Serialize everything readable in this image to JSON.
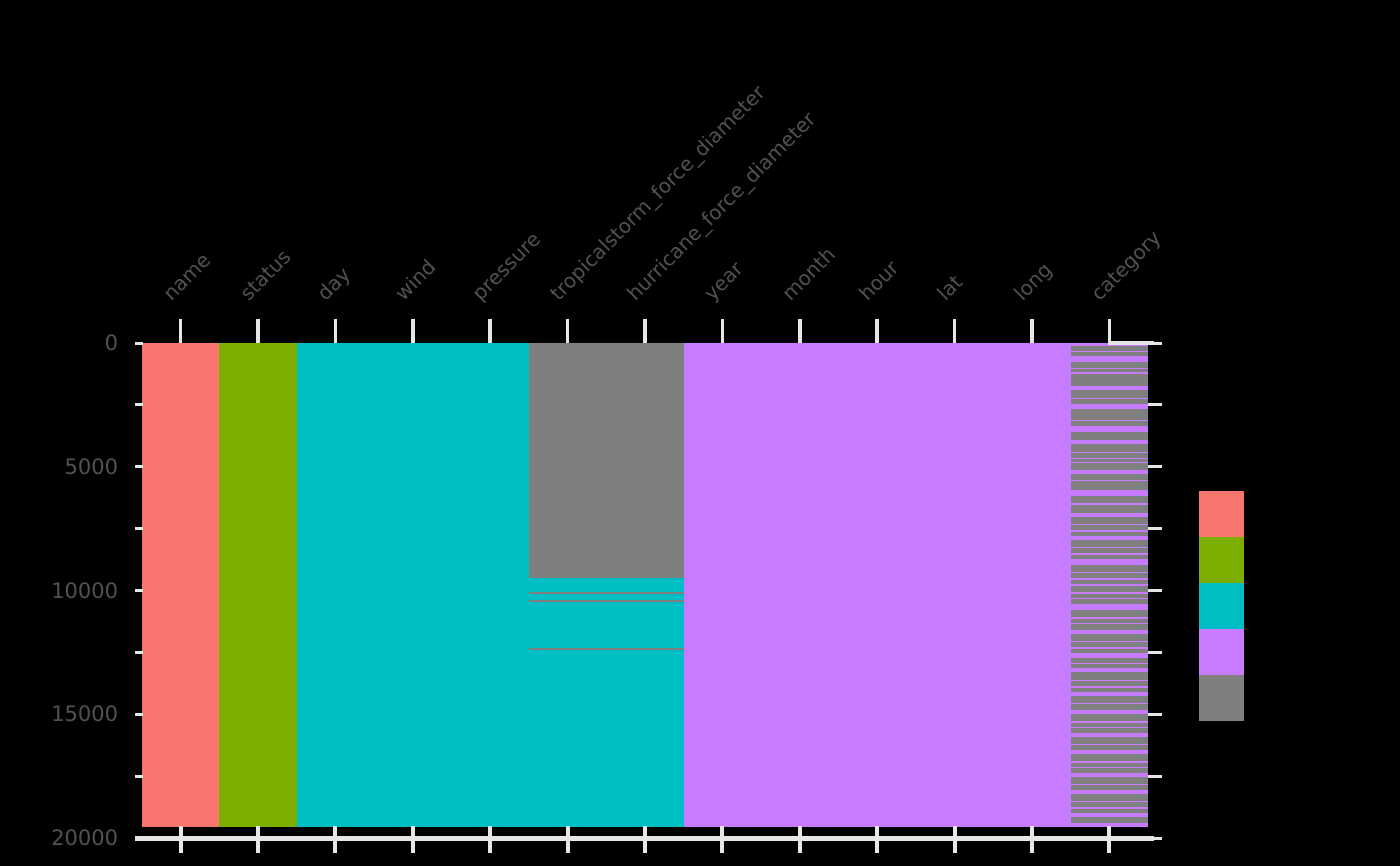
{
  "figure": {
    "background": "#000000",
    "tick_color": "#e6e6e6",
    "text_color": "#515151"
  },
  "chart_data": {
    "type": "heatmap",
    "subtype": "missing-data-matrix",
    "title": "",
    "xlabel": "",
    "ylabel": "",
    "grid": false,
    "legend_position": "right",
    "x_tick_labels": [
      "name",
      "status",
      "day",
      "wind",
      "pressure",
      "tropicalstorm_force_diameter",
      "hurricane_force_diameter",
      "year",
      "month",
      "hour",
      "lat",
      "long",
      "category"
    ],
    "y_ticks": {
      "major": [
        0,
        5000,
        10000,
        15000,
        20000
      ],
      "major_labels": [
        "0",
        "5000",
        "10000",
        "15000",
        "20000"
      ],
      "minor_step": 2500,
      "max": 20000,
      "direction": "down"
    },
    "n_rows": 19537,
    "colors": {
      "salmon": "#F8766D",
      "olive": "#7CAE00",
      "teal": "#00BFC4",
      "purple": "#C77CFF",
      "gray": "#7F7F7F"
    },
    "columns": [
      {
        "name": "name",
        "paint": [
          {
            "from": 0,
            "to": 19537,
            "color": "salmon"
          }
        ]
      },
      {
        "name": "status",
        "paint": [
          {
            "from": 0,
            "to": 19537,
            "color": "olive"
          }
        ]
      },
      {
        "name": "day",
        "paint": [
          {
            "from": 0,
            "to": 19537,
            "color": "teal"
          }
        ]
      },
      {
        "name": "wind",
        "paint": [
          {
            "from": 0,
            "to": 19537,
            "color": "teal"
          }
        ]
      },
      {
        "name": "pressure",
        "paint": [
          {
            "from": 0,
            "to": 19537,
            "color": "teal"
          }
        ]
      },
      {
        "name": "tropicalstorm_force_diameter",
        "paint": [
          {
            "from": 0,
            "to": 19537,
            "color": "teal"
          },
          {
            "from": 0,
            "to": 9475,
            "color": "gray"
          },
          {
            "from": 10080,
            "to": 10140,
            "color": "gray"
          },
          {
            "from": 10400,
            "to": 10460,
            "color": "gray"
          },
          {
            "from": 12330,
            "to": 12390,
            "color": "gray"
          }
        ]
      },
      {
        "name": "hurricane_force_diameter",
        "paint": [
          {
            "from": 0,
            "to": 19537,
            "color": "teal"
          },
          {
            "from": 0,
            "to": 9475,
            "color": "gray"
          },
          {
            "from": 10080,
            "to": 10140,
            "color": "gray"
          },
          {
            "from": 10400,
            "to": 10460,
            "color": "gray"
          },
          {
            "from": 12330,
            "to": 12390,
            "color": "gray"
          }
        ]
      },
      {
        "name": "year",
        "paint": [
          {
            "from": 0,
            "to": 19537,
            "color": "purple"
          }
        ]
      },
      {
        "name": "month",
        "paint": [
          {
            "from": 0,
            "to": 19537,
            "color": "purple"
          }
        ]
      },
      {
        "name": "hour",
        "paint": [
          {
            "from": 0,
            "to": 19537,
            "color": "purple"
          }
        ]
      },
      {
        "name": "lat",
        "paint": [
          {
            "from": 0,
            "to": 19537,
            "color": "purple"
          }
        ]
      },
      {
        "name": "long",
        "paint": [
          {
            "from": 0,
            "to": 19537,
            "color": "purple"
          }
        ]
      },
      {
        "name": "category",
        "paint": [
          {
            "from": 0,
            "to": 19537,
            "color": "gray"
          }
        ],
        "stripe_color": "purple",
        "stripes": [
          [
            0,
            120
          ],
          [
            323,
            61
          ],
          [
            525,
            242
          ],
          [
            1010,
            61
          ],
          [
            1172,
            61
          ],
          [
            1737,
            162
          ],
          [
            2222,
            61
          ],
          [
            2465,
            202
          ],
          [
            3111,
            61
          ],
          [
            3354,
            242
          ],
          [
            3919,
            162
          ],
          [
            4404,
            61
          ],
          [
            4646,
            61
          ],
          [
            4808,
            61
          ],
          [
            5131,
            162
          ],
          [
            5535,
            61
          ],
          [
            5939,
            242
          ],
          [
            6465,
            61
          ],
          [
            6869,
            162
          ],
          [
            7313,
            61
          ],
          [
            7556,
            61
          ],
          [
            7798,
            162
          ],
          [
            8242,
            61
          ],
          [
            8485,
            61
          ],
          [
            8727,
            242
          ],
          [
            9252,
            61
          ],
          [
            9495,
            61
          ],
          [
            9737,
            81
          ],
          [
            10061,
            61
          ],
          [
            10303,
            61
          ],
          [
            10545,
            242
          ],
          [
            11071,
            61
          ],
          [
            11313,
            61
          ],
          [
            11596,
            162
          ],
          [
            12040,
            61
          ],
          [
            12283,
            61
          ],
          [
            12525,
            202
          ],
          [
            12929,
            61
          ],
          [
            13131,
            162
          ],
          [
            13616,
            61
          ],
          [
            13859,
            61
          ],
          [
            14101,
            162
          ],
          [
            14545,
            61
          ],
          [
            14828,
            162
          ],
          [
            15273,
            61
          ],
          [
            15515,
            61
          ],
          [
            15758,
            162
          ],
          [
            16202,
            61
          ],
          [
            16444,
            162
          ],
          [
            16889,
            61
          ],
          [
            17131,
            61
          ],
          [
            17374,
            162
          ],
          [
            17818,
            61
          ],
          [
            18061,
            162
          ],
          [
            18505,
            61
          ],
          [
            18748,
            61
          ],
          [
            18990,
            162
          ],
          [
            19394,
            143
          ]
        ]
      }
    ],
    "legend_swatches": [
      "salmon",
      "olive",
      "teal",
      "purple",
      "gray"
    ]
  }
}
